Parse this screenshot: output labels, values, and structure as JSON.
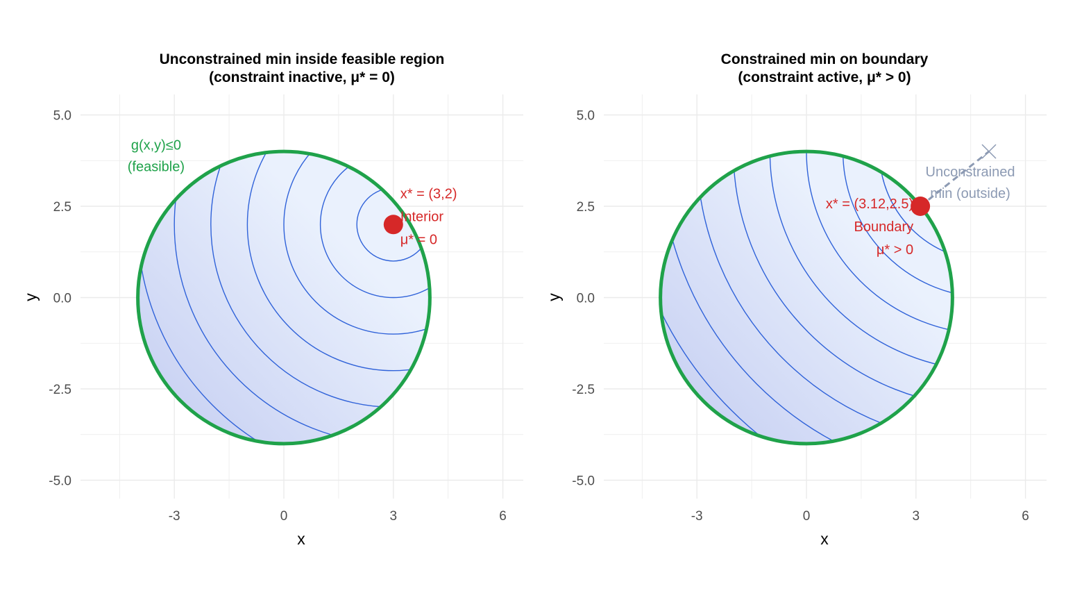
{
  "colors": {
    "grid": "#ebebeb",
    "feasible_fill_light": "#eaf1fd",
    "feasible_fill_dark": "#c3ccf1",
    "contour": "#2f62d9",
    "constraint": "#1fa24a",
    "point": "#d62828",
    "unconstrained": "#8c9ab3"
  },
  "chart_data": [
    {
      "type": "contour",
      "title": "Unconstrained min inside feasible region",
      "subtitle": "(constraint inactive, μ* = 0)",
      "xlabel": "x",
      "ylabel": "y",
      "xlim": [
        -4.7,
        7.4
      ],
      "ylim": [
        -5.5,
        5.5
      ],
      "xticks": [
        -3,
        0,
        3,
        6
      ],
      "xtick_labels": [
        "-3",
        "0",
        "3",
        "6"
      ],
      "yticks": [
        -5,
        -2.5,
        0,
        2.5,
        5
      ],
      "ytick_labels": [
        "-5.0",
        "-2.5",
        "0.0",
        "2.5",
        "5.0"
      ],
      "grid": true,
      "constraint": {
        "type": "circle",
        "center": [
          0,
          0
        ],
        "radius": 4,
        "label_lines": [
          "g(x,y)≤0",
          "(feasible)"
        ]
      },
      "objective_center": [
        3,
        2
      ],
      "contour_levels": [
        1,
        4,
        9,
        16,
        25,
        36,
        49,
        64
      ],
      "optimum": {
        "x": 3,
        "y": 2,
        "label_lines": [
          "x* = (3,2)",
          "Interior",
          "μ* = 0"
        ]
      }
    },
    {
      "type": "contour",
      "title": "Constrained min on boundary",
      "subtitle": "(constraint active, μ* > 0)",
      "xlabel": "x",
      "ylabel": "y",
      "xlim": [
        -4.7,
        7.4
      ],
      "ylim": [
        -5.5,
        5.5
      ],
      "xticks": [
        -3,
        0,
        3,
        6
      ],
      "xtick_labels": [
        "-3",
        "0",
        "3",
        "6"
      ],
      "yticks": [
        -5,
        -2.5,
        0,
        2.5,
        5
      ],
      "ytick_labels": [
        "-5.0",
        "-2.5",
        "0.0",
        "2.5",
        "5.0"
      ],
      "grid": true,
      "constraint": {
        "type": "circle",
        "center": [
          0,
          0
        ],
        "radius": 4
      },
      "objective_center": [
        5,
        4
      ],
      "contour_levels": [
        4,
        9,
        16,
        25,
        36,
        49,
        64,
        81,
        100
      ],
      "optimum": {
        "x": 3.12,
        "y": 2.5,
        "label_lines": [
          "x* = (3.12,2.5)",
          "Boundary",
          "μ* > 0"
        ]
      },
      "unconstrained_min": {
        "x": 5,
        "y": 4,
        "label_lines": [
          "Unconstrained",
          "min (outside)"
        ]
      }
    }
  ]
}
